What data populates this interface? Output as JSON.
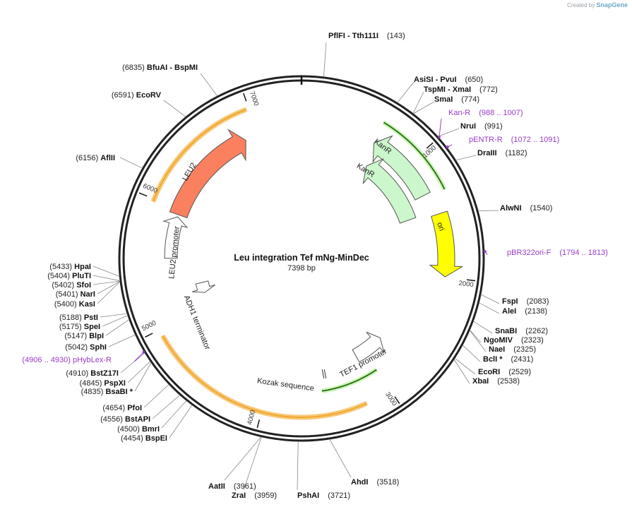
{
  "credit": {
    "prefix": "Created by",
    "brand": "SnapGene"
  },
  "plasmid": {
    "name": "Leu integration Tef mNg-MinDec",
    "size": "7398 bp",
    "length": 7398
  },
  "ruler_ticks": [
    {
      "pos": 1000,
      "label": "1000"
    },
    {
      "pos": 2000,
      "label": "2000"
    },
    {
      "pos": 3000,
      "label": "3000"
    },
    {
      "pos": 4000,
      "label": "4000"
    },
    {
      "pos": 5000,
      "label": "5000"
    },
    {
      "pos": 6000,
      "label": "6000"
    },
    {
      "pos": 7000,
      "label": "7000"
    }
  ],
  "features": [
    {
      "name": "KanR",
      "kind": "cds",
      "start": 1290,
      "end": 660,
      "color": "#ccf7cc"
    },
    {
      "name": "KanR",
      "kind": "cds",
      "start": 1445,
      "end": 720,
      "color": "#ccf7cc"
    },
    {
      "name": "ori",
      "kind": "ori",
      "start": 1480,
      "end": 2000,
      "color": "#ffff00"
    },
    {
      "name": "TEF1 promoter",
      "kind": "promoter",
      "start": 3100,
      "end": 2780
    },
    {
      "name": "Kozak sequence",
      "kind": "misc",
      "start": 3475,
      "end": 3485
    },
    {
      "name": "ADH1 terminator",
      "kind": "terminator",
      "start": 5270,
      "end": 5150
    },
    {
      "name": "LEU2 promoter",
      "kind": "promoter",
      "start": 5550,
      "end": 5930
    },
    {
      "name": "LEU2",
      "kind": "cds",
      "start": 5950,
      "end": 6880,
      "color": "#fa8060"
    }
  ],
  "orange_bands": [
    {
      "start": 5980,
      "end": 6980
    },
    {
      "start": 3200,
      "end": 4950
    }
  ],
  "green_lines": [
    {
      "start": 1320,
      "end": 640
    },
    {
      "start": 3000,
      "end": 3520
    }
  ],
  "sites": [
    {
      "name": "PflFI",
      "name2": "Tth111I",
      "pos": "(143)",
      "at": 143
    },
    {
      "name": "AsiSI",
      "name2": "PvuI",
      "pos": "(650)",
      "at": 650
    },
    {
      "name": "TspMI",
      "name2": "XmaI",
      "pos": "(772)",
      "at": 772
    },
    {
      "name": "SmaI",
      "name2": "",
      "pos": "(774)",
      "at": 774
    },
    {
      "name": "NruI",
      "name2": "",
      "pos": "(991)",
      "at": 991
    },
    {
      "name": "DraIII",
      "name2": "",
      "pos": "(1182)",
      "at": 1182
    },
    {
      "name": "AlwNI",
      "name2": "",
      "pos": "(1540)",
      "at": 1540
    },
    {
      "name": "FspI",
      "name2": "",
      "pos": "(2083)",
      "at": 2083
    },
    {
      "name": "AleI",
      "name2": "",
      "pos": "(2138)",
      "at": 2138
    },
    {
      "name": "SnaBI",
      "name2": "",
      "pos": "(2262)",
      "at": 2262
    },
    {
      "name": "NgoMIV",
      "name2": "",
      "pos": "(2323)",
      "at": 2323
    },
    {
      "name": "NaeI",
      "name2": "",
      "pos": "(2325)",
      "at": 2325
    },
    {
      "name": "BclI *",
      "name2": "",
      "pos": "(2431)",
      "at": 2431
    },
    {
      "name": "EcoRI",
      "name2": "",
      "pos": "(2529)",
      "at": 2529
    },
    {
      "name": "XbaI",
      "name2": "",
      "pos": "(2538)",
      "at": 2538
    },
    {
      "name": "AhdI",
      "name2": "",
      "pos": "(3518)",
      "at": 3518
    },
    {
      "name": "PshAI",
      "name2": "",
      "pos": "(3721)",
      "at": 3721
    },
    {
      "name": "ZraI",
      "name2": "",
      "pos": "(3959)",
      "at": 3959
    },
    {
      "name": "AatII",
      "name2": "",
      "pos": "(3961)",
      "at": 3961
    },
    {
      "name": "BspEI",
      "name2": "",
      "pos": "(4454)",
      "at": 4454
    },
    {
      "name": "BmrI",
      "name2": "",
      "pos": "(4500)",
      "at": 4500
    },
    {
      "name": "BstAPI",
      "name2": "",
      "pos": "(4556)",
      "at": 4556
    },
    {
      "name": "PfoI",
      "name2": "",
      "pos": "(4654)",
      "at": 4654
    },
    {
      "name": "BsaBI *",
      "name2": "",
      "pos": "(4835)",
      "at": 4835
    },
    {
      "name": "PspXI",
      "name2": "",
      "pos": "(4845)",
      "at": 4845
    },
    {
      "name": "BstZ17I",
      "name2": "",
      "pos": "(4910)",
      "at": 4910
    },
    {
      "name": "SphI",
      "name2": "",
      "pos": "(5042)",
      "at": 5042
    },
    {
      "name": "BlpI",
      "name2": "",
      "pos": "(5147)",
      "at": 5147
    },
    {
      "name": "SpeI",
      "name2": "",
      "pos": "(5175)",
      "at": 5175
    },
    {
      "name": "PstI",
      "name2": "",
      "pos": "(5188)",
      "at": 5188
    },
    {
      "name": "KasI",
      "name2": "",
      "pos": "(5400)",
      "at": 5400
    },
    {
      "name": "NarI",
      "name2": "",
      "pos": "(5401)",
      "at": 5401
    },
    {
      "name": "SfoI",
      "name2": "",
      "pos": "(5402)",
      "at": 5402
    },
    {
      "name": "PluTI",
      "name2": "",
      "pos": "(5404)",
      "at": 5404
    },
    {
      "name": "HpaI",
      "name2": "",
      "pos": "(5433)",
      "at": 5433
    },
    {
      "name": "AflII",
      "name2": "",
      "pos": "(6156)",
      "at": 6156
    },
    {
      "name": "EcoRV",
      "name2": "",
      "pos": "(6591)",
      "at": 6591
    },
    {
      "name": "BfuAI",
      "name2": "BspMI",
      "pos": "(6835)",
      "at": 6835
    }
  ],
  "primers": [
    {
      "name": "Kan-R",
      "pos": "(988 .. 1007)",
      "at": 998
    },
    {
      "name": "pENTR-R",
      "pos": "(1072 .. 1091)",
      "at": 1082
    },
    {
      "name": "pBR322ori-F",
      "pos": "(1794 .. 1813)",
      "at": 1804
    },
    {
      "name": "pHybLex-R",
      "pos": "(4906 .. 4930)",
      "at": 4918
    }
  ],
  "colors": {
    "backbone": "#222222",
    "primer": "#9a3bc9",
    "ruler_label": "#333333",
    "band": "#f0a830"
  }
}
